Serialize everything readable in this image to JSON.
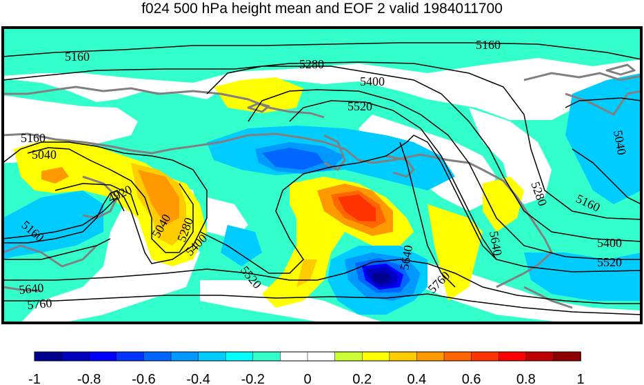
{
  "title": "f024 500 hPa height mean and EOF 2 valid 1984011700",
  "map": {
    "contour_labels": [
      "5160",
      "5160",
      "5280",
      "5400",
      "5520",
      "5160",
      "5040",
      "4920",
      "5040",
      "5280",
      "5400",
      "5160",
      "5520",
      "5640",
      "5760",
      "5640",
      "5760",
      "5640",
      "5280",
      "5040",
      "5160",
      "5400",
      "5520"
    ]
  },
  "colorbar": {
    "colors": [
      "#00008f",
      "#0000bf",
      "#0000ff",
      "#0033ff",
      "#0066ff",
      "#0099ff",
      "#00ccff",
      "#00ffff",
      "#33ffcc",
      "#ffffff",
      "#ffffff",
      "#ccff33",
      "#ffff00",
      "#ffcc00",
      "#ff9900",
      "#ff6600",
      "#ff3300",
      "#ff0000",
      "#bf0000",
      "#8f0000"
    ],
    "tick_labels": [
      "-1",
      "-0.8",
      "-0.6",
      "-0.4",
      "-0.2",
      "0",
      "0.2",
      "0.4",
      "0.6",
      "0.8",
      "1"
    ]
  }
}
